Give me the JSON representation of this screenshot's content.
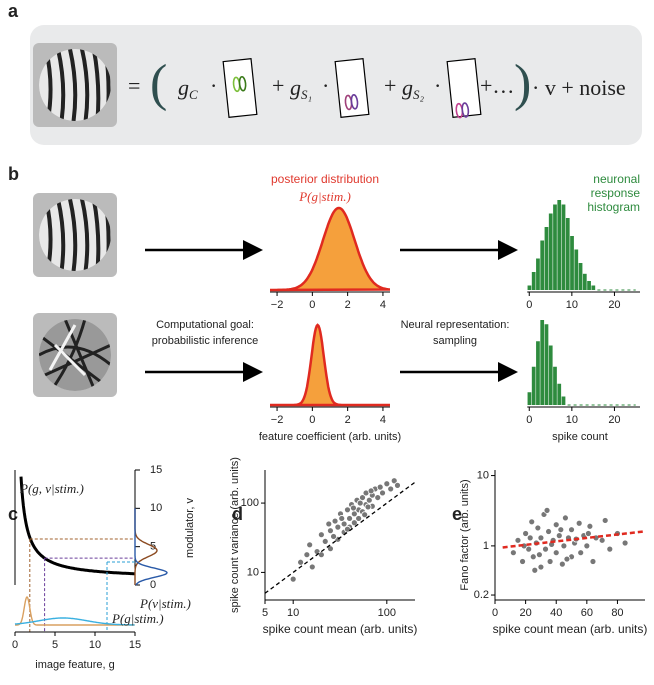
{
  "panel_labels": [
    "a",
    "b",
    "c",
    "d",
    "e"
  ],
  "a": {
    "equals": "=",
    "open": "(",
    "close": ")",
    "dot": "·",
    "plus": "+",
    "ellipsis": "+…",
    "tail": "· v + noise",
    "g": "g",
    "subs": [
      "C",
      "S₁",
      "S₂"
    ]
  },
  "b": {
    "posterior_title": "posterior distribution",
    "posterior_formula": "P(g|stim.)",
    "histogram_title": [
      "neuronal",
      "response",
      "histogram"
    ],
    "goal": [
      "Computational goal:",
      "probabilistic inference"
    ],
    "representation": [
      "Neural representation:",
      "sampling"
    ],
    "posterior_xlabel": "feature coefficient (arb. units)",
    "histogram_xlabel": "spike count",
    "posterior_xlim": [
      -2.4,
      4.4
    ],
    "posterior_xticks": [
      {
        "value": -2,
        "label": "−2"
      },
      0,
      2,
      4
    ],
    "histogram_xlim": [
      -1,
      26
    ],
    "histogram_xticks": [
      0,
      10,
      20
    ],
    "histogram_ylim": [
      0,
      1
    ],
    "rows": [
      {
        "mean": 1.5,
        "sd": 0.9,
        "counts": [
          0.05,
          0.2,
          0.35,
          0.55,
          0.7,
          0.85,
          0.95,
          1,
          0.95,
          0.8,
          0.6,
          0.45,
          0.3,
          0.18,
          0.1,
          0.05
        ]
      },
      {
        "mean": 0.3,
        "sd": 0.35,
        "counts": [
          0.15,
          0.45,
          0.75,
          1.0,
          0.95,
          0.7,
          0.45,
          0.25,
          0.1
        ]
      }
    ]
  },
  "c": {
    "joint": "P(g, v|stim.)",
    "marginal_v": "P(v|stim.)",
    "marginal_g": "P(g|stim.)",
    "xlabel": "image feature, g",
    "ylabel": "modulator, v",
    "xlim": [
      0,
      15
    ],
    "xticks": [
      0,
      5,
      10,
      15
    ],
    "ylim": [
      0,
      15
    ],
    "yticks": [
      0,
      5,
      10,
      15
    ]
  },
  "d": {
    "xlabel": "spike count mean (arb. units)",
    "ylabel": "spike count variance (arb. units)",
    "xlim": [
      5,
      200
    ],
    "xticks": [
      5,
      10,
      100
    ],
    "ylim": [
      4,
      300
    ],
    "yticks": [
      10,
      100
    ],
    "points": [
      [
        12,
        14
      ],
      [
        15,
        25
      ],
      [
        18,
        20
      ],
      [
        20,
        35
      ],
      [
        22,
        28
      ],
      [
        25,
        40
      ],
      [
        25,
        22
      ],
      [
        28,
        55
      ],
      [
        30,
        45
      ],
      [
        30,
        30
      ],
      [
        32,
        70
      ],
      [
        35,
        50
      ],
      [
        35,
        38
      ],
      [
        38,
        80
      ],
      [
        40,
        60
      ],
      [
        40,
        45
      ],
      [
        42,
        95
      ],
      [
        45,
        70
      ],
      [
        45,
        52
      ],
      [
        48,
        110
      ],
      [
        50,
        80
      ],
      [
        50,
        60
      ],
      [
        55,
        120
      ],
      [
        55,
        75
      ],
      [
        60,
        95
      ],
      [
        60,
        140
      ],
      [
        65,
        110
      ],
      [
        70,
        130
      ],
      [
        70,
        90
      ],
      [
        75,
        160
      ],
      [
        80,
        120
      ],
      [
        85,
        170
      ],
      [
        90,
        140
      ],
      [
        100,
        190
      ],
      [
        110,
        160
      ],
      [
        120,
        210
      ],
      [
        130,
        180
      ],
      [
        20,
        18
      ],
      [
        27,
        33
      ],
      [
        33,
        60
      ],
      [
        38,
        42
      ],
      [
        44,
        85
      ],
      [
        52,
        100
      ],
      [
        58,
        68
      ],
      [
        63,
        88
      ],
      [
        68,
        150
      ],
      [
        16,
        12
      ],
      [
        24,
        50
      ],
      [
        10,
        8
      ],
      [
        14,
        18
      ]
    ]
  },
  "e": {
    "xlabel": "spike count mean (arb. units)",
    "ylabel": "Fano factor (arb. units)",
    "xlim": [
      0,
      98
    ],
    "xticks": [
      0,
      20,
      40,
      60,
      80
    ],
    "ylim": [
      0.17,
      12
    ],
    "yticks": [
      0.2,
      1,
      10
    ],
    "trend": {
      "x": [
        5,
        97
      ],
      "y": [
        0.95,
        1.6
      ]
    },
    "points": [
      [
        12,
        0.8
      ],
      [
        15,
        1.2
      ],
      [
        18,
        0.6
      ],
      [
        20,
        1.5
      ],
      [
        22,
        0.9
      ],
      [
        24,
        2.2
      ],
      [
        25,
        0.7
      ],
      [
        27,
        1.1
      ],
      [
        28,
        1.8
      ],
      [
        30,
        0.5
      ],
      [
        30,
        1.3
      ],
      [
        32,
        2.8
      ],
      [
        33,
        0.9
      ],
      [
        35,
        1.6
      ],
      [
        36,
        0.6
      ],
      [
        38,
        1.2
      ],
      [
        40,
        2.0
      ],
      [
        40,
        0.8
      ],
      [
        42,
        1.4
      ],
      [
        44,
        0.55
      ],
      [
        45,
        1.0
      ],
      [
        46,
        2.5
      ],
      [
        48,
        1.3
      ],
      [
        50,
        0.7
      ],
      [
        50,
        1.7
      ],
      [
        52,
        1.1
      ],
      [
        55,
        2.1
      ],
      [
        56,
        0.8
      ],
      [
        58,
        1.4
      ],
      [
        60,
        1.0
      ],
      [
        62,
        1.9
      ],
      [
        64,
        0.6
      ],
      [
        66,
        1.3
      ],
      [
        70,
        1.2
      ],
      [
        72,
        2.3
      ],
      [
        75,
        0.9
      ],
      [
        80,
        1.5
      ],
      [
        85,
        1.1
      ],
      [
        26,
        0.45
      ],
      [
        34,
        3.2
      ],
      [
        19,
        1.0
      ],
      [
        23,
        1.3
      ],
      [
        29,
        0.75
      ],
      [
        37,
        1.05
      ],
      [
        43,
        1.7
      ],
      [
        47,
        0.65
      ],
      [
        53,
        1.25
      ],
      [
        61,
        1.5
      ]
    ]
  }
}
